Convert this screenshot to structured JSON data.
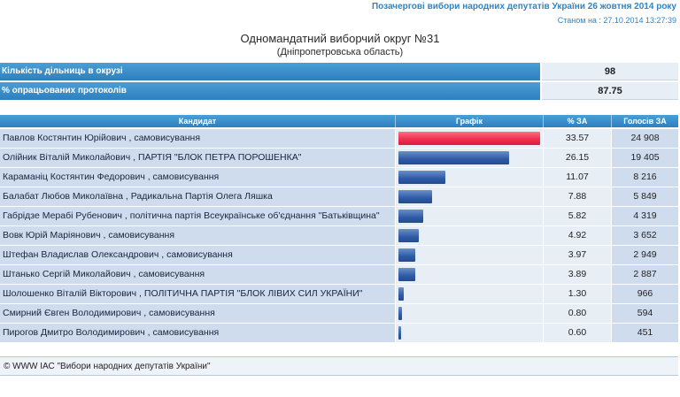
{
  "header": {
    "election_title": "Позачергові вибори народних депутатів України 26 жовтня 2014 року",
    "status_stamp": "Станом на : 27.10.2014 13:27:39",
    "district_title": "Одномандатний виборчий округ №31",
    "region": "(Дніпропетровська область)"
  },
  "summary": [
    {
      "label": "Кількість дільниць в окрузі",
      "value": "98"
    },
    {
      "label": "% опрацьованих протоколів",
      "value": "87.75"
    }
  ],
  "table": {
    "columns": {
      "candidate": "Кандидат",
      "graph": "Графік",
      "percent": "% ЗА",
      "votes": "Голосів ЗА"
    },
    "rows": [
      {
        "name": "Павлов Костянтин Юрійович",
        "party": " , самовисування",
        "percent": "33.57",
        "votes": "24 908"
      },
      {
        "name": "Олійник Віталій Миколайович",
        "party": " , ПАРТІЯ \"БЛОК ПЕТРА ПОРОШЕНКА\"",
        "percent": "26.15",
        "votes": "19 405"
      },
      {
        "name": "Караманіц Костянтин Федорович",
        "party": " , самовисування",
        "percent": "11.07",
        "votes": "8 216"
      },
      {
        "name": "Балабат Любов Миколаївна",
        "party": " , Радикальна Партія Олега Ляшка",
        "percent": "7.88",
        "votes": "5 849"
      },
      {
        "name": "Габрідзе Мерабі Рубенович",
        "party": " , політична партія Всеукраїнське об'єднання \"Батьківщина\"",
        "percent": "5.82",
        "votes": "4 319"
      },
      {
        "name": "Вовк Юрій Маріянович",
        "party": " , самовисування",
        "percent": "4.92",
        "votes": "3 652"
      },
      {
        "name": "Штефан Владислав Олександрович",
        "party": " , самовисування",
        "percent": "3.97",
        "votes": "2 949"
      },
      {
        "name": "Штанько Сергій Миколайович",
        "party": " , самовисування",
        "percent": "3.89",
        "votes": "2 887"
      },
      {
        "name": "Шолошенко Віталій Вікторович",
        "party": " , ПОЛІТИЧНА ПАРТІЯ \"БЛОК ЛІВИХ СИЛ УКРАЇНИ\"",
        "percent": "1.30",
        "votes": "966"
      },
      {
        "name": "Смирний Євген Володимирович",
        "party": " , самовисування",
        "percent": "0.80",
        "votes": "594"
      },
      {
        "name": "Пирогов Дмитро Володимирович",
        "party": " , самовисування",
        "percent": "0.60",
        "votes": "451"
      }
    ]
  },
  "footer": {
    "copyright": "© WWW ІАС \"Вибори народних депутатів України\""
  },
  "colors": {
    "header_blue": "#2e7fbf",
    "leader_bar": "#f0304f",
    "other_bar": "#2e5aa6",
    "link_blue": "#2e84c6"
  }
}
